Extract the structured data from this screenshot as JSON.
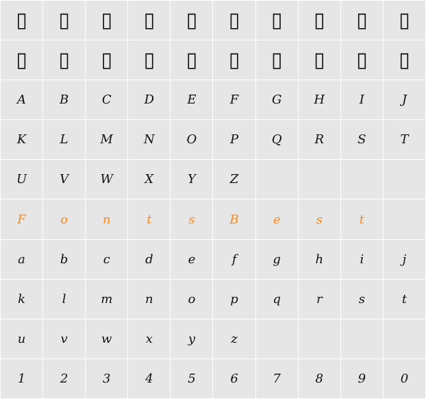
{
  "rows": [
    {
      "cells": [
        "▯",
        "▯",
        "▯",
        "▯",
        "▯",
        "▯",
        "▯",
        "▯",
        "▯",
        "▯"
      ]
    },
    {
      "cells": [
        "▯",
        "▯",
        "▯",
        "▯",
        "▯",
        "▯",
        "▯",
        "▯",
        "▯",
        "▯"
      ]
    },
    {
      "cells": [
        "A",
        "B",
        "C",
        "D",
        "E",
        "F",
        "G",
        "H",
        "I",
        "J"
      ]
    },
    {
      "cells": [
        "K",
        "L",
        "M",
        "N",
        "O",
        "P",
        "Q",
        "R",
        "S",
        "T"
      ]
    },
    {
      "cells": [
        "U",
        "V",
        "W",
        "X",
        "Y",
        "Z"
      ]
    },
    {
      "cells": [
        "F",
        "o",
        "n",
        "t",
        "s",
        "B",
        "e",
        "s",
        "t"
      ],
      "color": "#f5891f"
    },
    {
      "cells": [
        "a",
        "b",
        "c",
        "d",
        "e",
        "f",
        "g",
        "h",
        "i",
        "j"
      ]
    },
    {
      "cells": [
        "k",
        "l",
        "m",
        "n",
        "o",
        "p",
        "q",
        "r",
        "s",
        "t"
      ]
    },
    {
      "cells": [
        "u",
        "v",
        "w",
        "x",
        "y",
        "z"
      ]
    },
    {
      "cells": [
        "1",
        "2",
        "3",
        "4",
        "5",
        "6",
        "7",
        "8",
        "9",
        "0"
      ]
    }
  ]
}
